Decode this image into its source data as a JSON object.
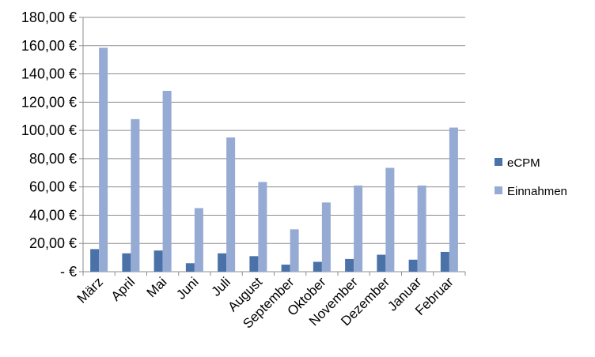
{
  "chart_data": {
    "type": "bar",
    "categories": [
      "März",
      "April",
      "Mai",
      "Juni",
      "Juli",
      "August",
      "September",
      "Oktober",
      "November",
      "Dezember",
      "Januar",
      "Februar"
    ],
    "series": [
      {
        "name": "eCPM",
        "color": "#4a72a8",
        "values": [
          16,
          13,
          15,
          6,
          13,
          11,
          5,
          7,
          9,
          12,
          8.5,
          14
        ]
      },
      {
        "name": "Einnahmen",
        "color": "#95abd3",
        "values": [
          158.5,
          108,
          128,
          45,
          95,
          63.5,
          30,
          49,
          61,
          73.5,
          61,
          102
        ]
      }
    ],
    "ylim": [
      0,
      180
    ],
    "y_ticks": [
      0,
      20,
      40,
      60,
      80,
      100,
      120,
      140,
      160,
      180
    ],
    "y_tick_labels": [
      "-  €",
      "20,00 €",
      "40,00 €",
      "60,00 €",
      "80,00 €",
      "100,00 €",
      "120,00 €",
      "140,00 €",
      "160,00 €",
      "180,00 €"
    ],
    "grid": true,
    "legend_position": "right",
    "title": "",
    "xlabel": "",
    "ylabel": ""
  }
}
